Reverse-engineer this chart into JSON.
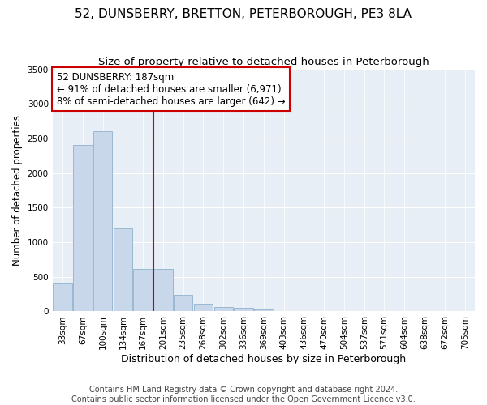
{
  "title": "52, DUNSBERRY, BRETTON, PETERBOROUGH, PE3 8LA",
  "subtitle": "Size of property relative to detached houses in Peterborough",
  "xlabel": "Distribution of detached houses by size in Peterborough",
  "ylabel": "Number of detached properties",
  "footer_line1": "Contains HM Land Registry data © Crown copyright and database right 2024.",
  "footer_line2": "Contains public sector information licensed under the Open Government Licence v3.0.",
  "categories": [
    "33sqm",
    "67sqm",
    "100sqm",
    "134sqm",
    "167sqm",
    "201sqm",
    "235sqm",
    "268sqm",
    "302sqm",
    "336sqm",
    "369sqm",
    "403sqm",
    "436sqm",
    "470sqm",
    "504sqm",
    "537sqm",
    "571sqm",
    "604sqm",
    "638sqm",
    "672sqm",
    "705sqm"
  ],
  "values": [
    400,
    2400,
    2600,
    1200,
    620,
    620,
    240,
    110,
    60,
    55,
    25,
    10,
    3,
    2,
    1,
    1,
    0,
    0,
    0,
    0,
    0
  ],
  "bar_color": "#c8d8ea",
  "bar_edge_color": "#9ab8d0",
  "background_color": "#e8eef5",
  "red_line_index": 5,
  "annotation_line1": "52 DUNSBERRY: 187sqm",
  "annotation_line2": "← 91% of detached houses are smaller (6,971)",
  "annotation_line3": "8% of semi-detached houses are larger (642) →",
  "annotation_box_color": "#cc0000",
  "ylim": [
    0,
    3500
  ],
  "yticks": [
    0,
    500,
    1000,
    1500,
    2000,
    2500,
    3000,
    3500
  ],
  "title_fontsize": 11,
  "subtitle_fontsize": 9.5,
  "annotation_fontsize": 8.5,
  "tick_fontsize": 7.5,
  "xlabel_fontsize": 9,
  "ylabel_fontsize": 8.5,
  "footer_fontsize": 7
}
